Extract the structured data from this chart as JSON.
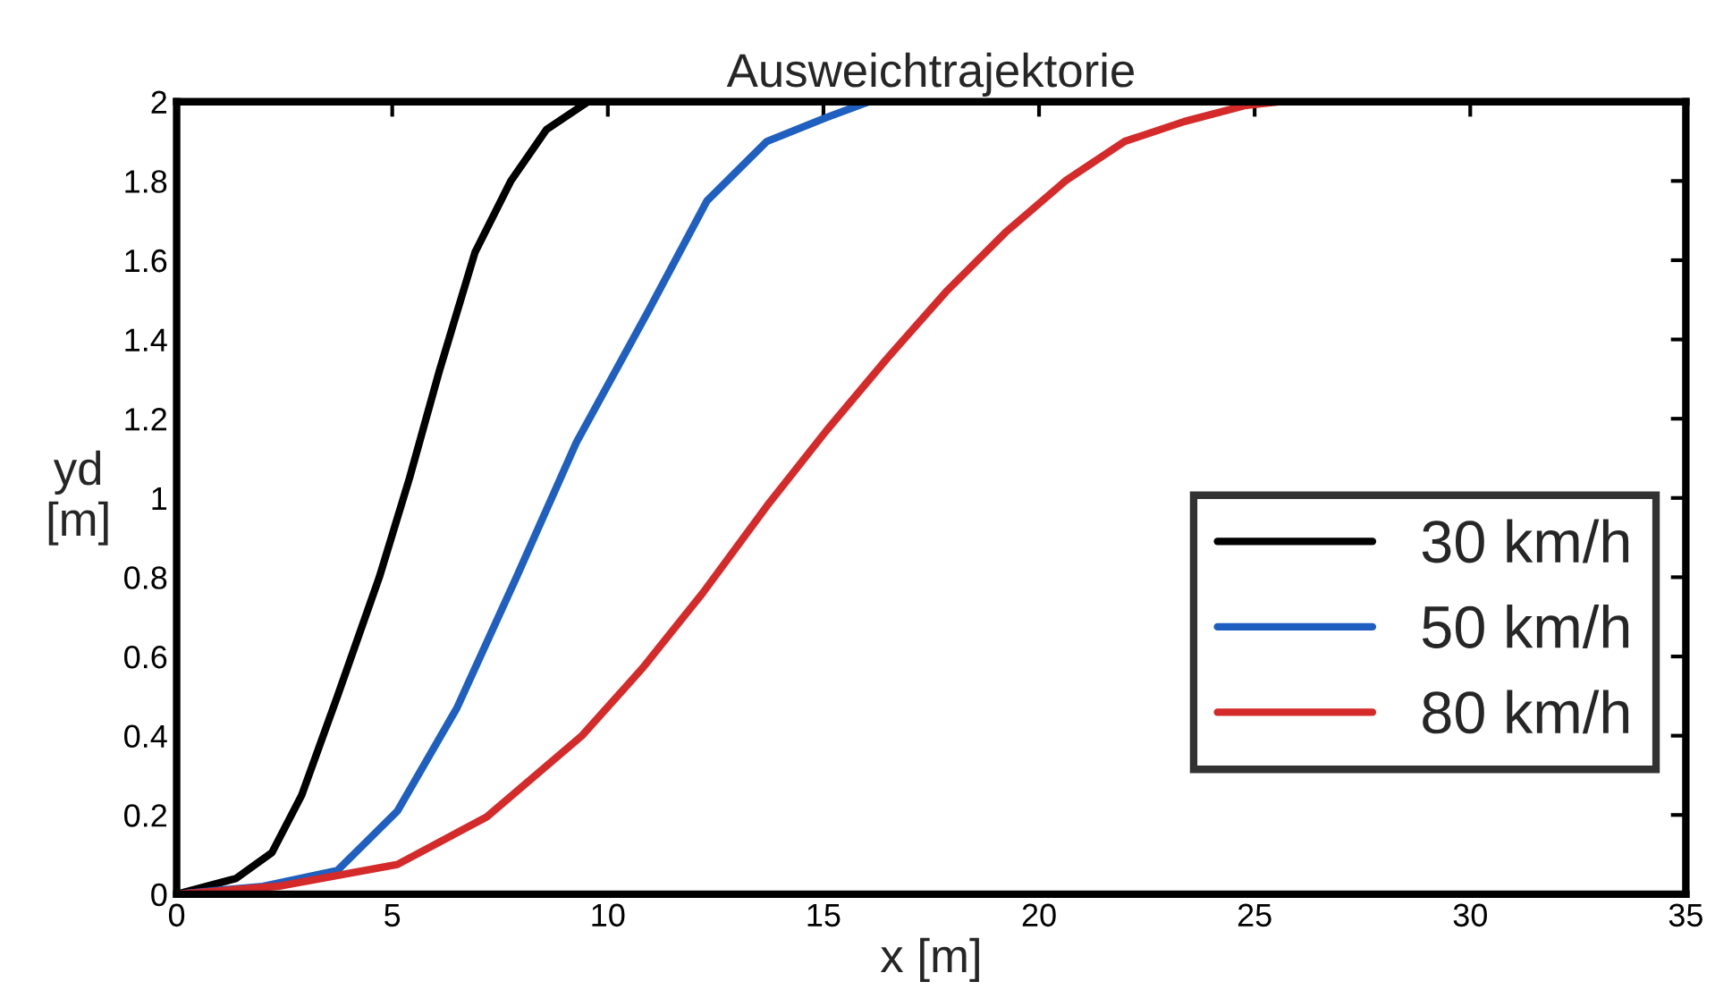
{
  "chart_data": {
    "type": "line",
    "title": "Ausweichtrajektorie",
    "xlabel": "x [m]",
    "ylabel": "yd\n[m]",
    "xlim": [
      0,
      35
    ],
    "xticks": [
      0,
      5,
      10,
      15,
      20,
      25,
      30,
      35
    ],
    "ylim": [
      0,
      2
    ],
    "yticks": [
      0,
      0.2,
      0.4,
      0.6,
      0.8,
      1,
      1.2,
      1.4,
      1.6,
      1.8,
      2
    ],
    "grid": false,
    "legend": "bottom right",
    "line_style": "solid",
    "marker": "none",
    "series": [
      {
        "name": "30 km/h",
        "color": "#000000",
        "x": [
          0,
          1.38,
          2.21,
          2.9,
          3.73,
          4.7,
          5.4,
          6.09,
          6.92,
          7.75,
          8.58,
          9.54
        ],
        "values": [
          0,
          0.04,
          0.105,
          0.25,
          0.5,
          0.8,
          1.05,
          1.32,
          1.62,
          1.8,
          1.93,
          2
        ]
      },
      {
        "name": "50 km/h",
        "color": "#1f5fbf",
        "x": [
          0,
          2.0,
          3.73,
          5.12,
          6.5,
          7.88,
          9.27,
          10.93,
          12.3,
          13.69,
          15.07,
          16.05
        ],
        "values": [
          0,
          0.02,
          0.06,
          0.21,
          0.47,
          0.8,
          1.14,
          1.47,
          1.75,
          1.9,
          1.96,
          2
        ]
      },
      {
        "name": "80 km/h",
        "color": "#d42a2a",
        "x": [
          0,
          2.35,
          5.12,
          7.19,
          9.4,
          10.8,
          12.2,
          13.69,
          15.07,
          16.46,
          17.84,
          19.22,
          20.61,
          21.99,
          23.37,
          24.76,
          25.6
        ],
        "values": [
          0,
          0.02,
          0.075,
          0.195,
          0.4,
          0.57,
          0.76,
          0.98,
          1.17,
          1.35,
          1.52,
          1.67,
          1.8,
          1.9,
          1.95,
          1.99,
          2
        ]
      }
    ]
  }
}
